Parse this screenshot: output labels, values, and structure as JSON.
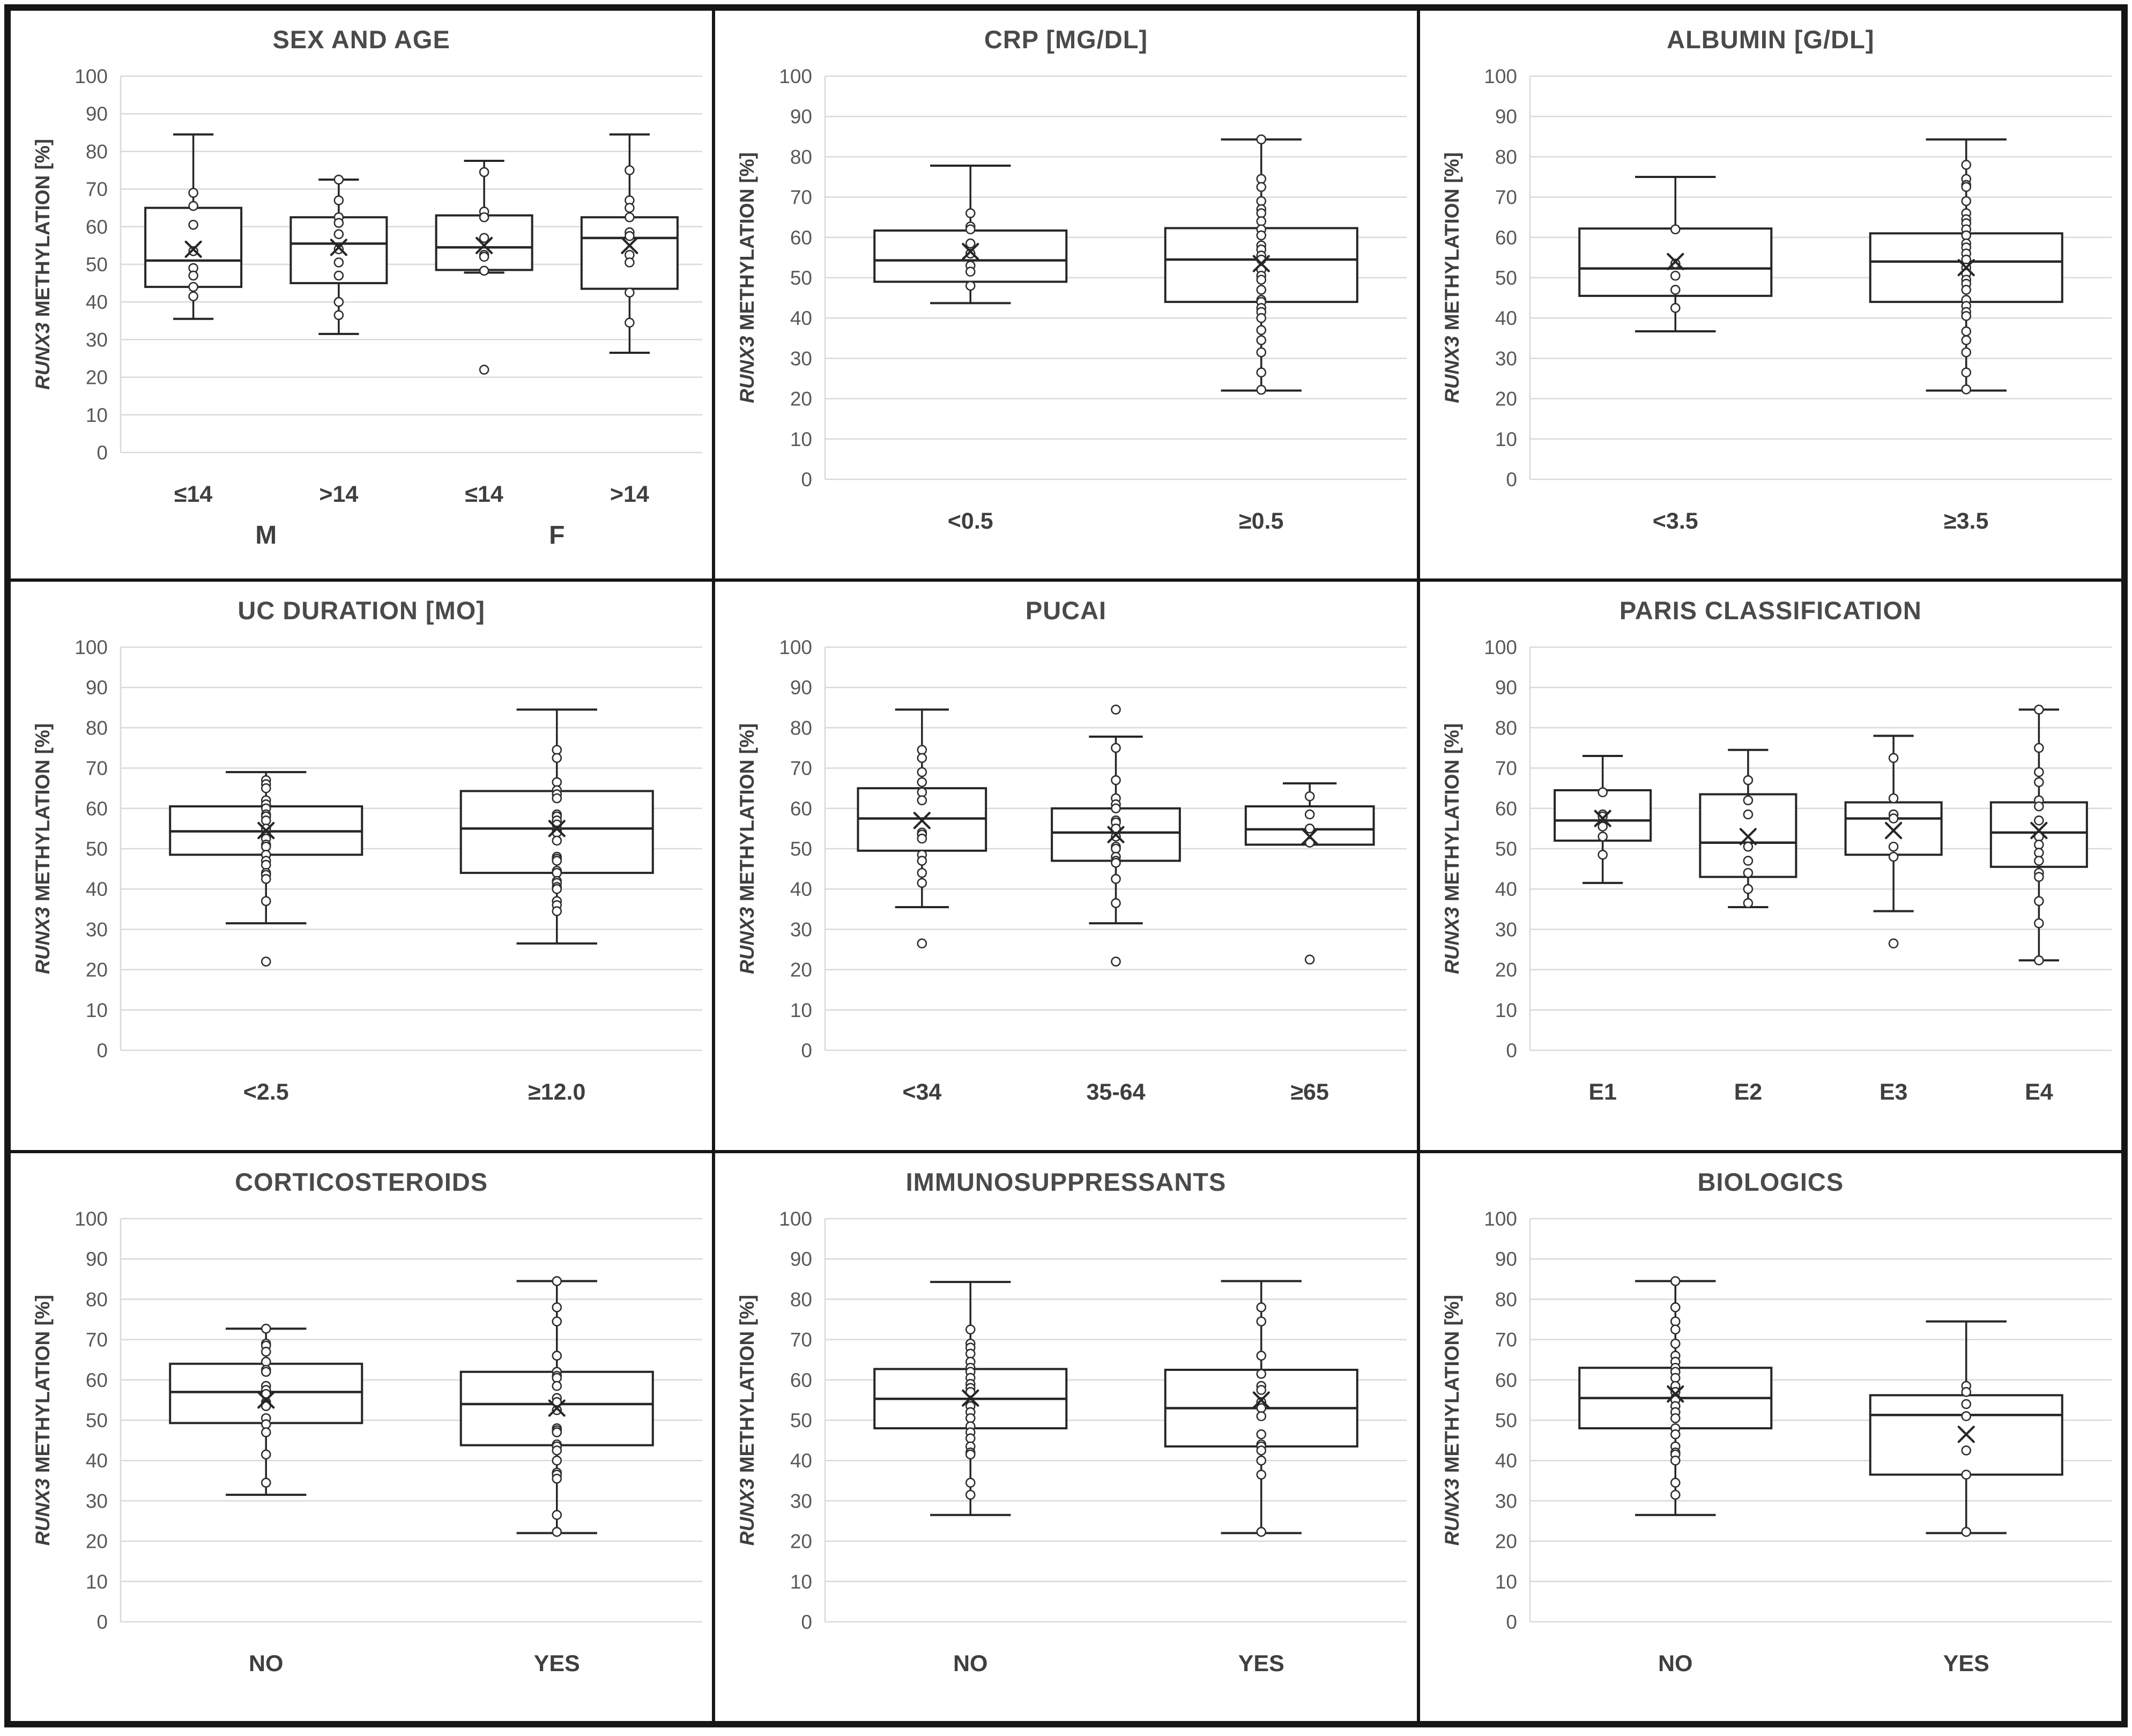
{
  "figure_title": "",
  "axis": {
    "ylabel_gene": "RUNX3",
    "ylabel_rest": "METHYLATION [%]",
    "ylim": [
      0,
      100
    ],
    "yticks": [
      0,
      10,
      20,
      30,
      40,
      50,
      60,
      70,
      80,
      90,
      100
    ],
    "grid": "horizontal",
    "colors": {
      "grid": "#d9d9d9",
      "tick_text": "#595959",
      "title_text": "#4a4a4a",
      "category_text": "#3f3f3f",
      "box_stroke": "#262626"
    }
  },
  "chart_data": [
    {
      "type": "box",
      "title": "SEX AND AGE",
      "categories": [
        "≤14",
        ">14",
        "≤14",
        ">14"
      ],
      "group_labels": [
        {
          "label": "M",
          "start": 0,
          "end": 1
        },
        {
          "label": "F",
          "start": 2,
          "end": 3
        }
      ],
      "series": [
        {
          "category": "≤14",
          "low": 35.5,
          "q1": 44.0,
          "median": 51.0,
          "q3": 65.0,
          "high": 84.5,
          "mean": 54.0,
          "points": [
            69.0,
            65.5,
            60.5,
            53.5,
            49.0,
            47.0,
            44.0,
            41.5
          ],
          "outliers": []
        },
        {
          "category": ">14",
          "low": 31.5,
          "q1": 45.0,
          "median": 55.5,
          "q3": 62.5,
          "high": 72.5,
          "mean": 54.5,
          "points": [
            72.5,
            67.0,
            62.5,
            61.0,
            58.0,
            54.0,
            50.5,
            47.0,
            40.0,
            36.5
          ],
          "outliers": []
        },
        {
          "category": "≤14",
          "low": 47.8,
          "q1": 48.5,
          "median": 54.5,
          "q3": 63.0,
          "high": 77.5,
          "mean": 55.0,
          "points": [
            74.5,
            64.0,
            62.5,
            57.0,
            52.5,
            52.0,
            48.3
          ],
          "outliers": [
            22.0
          ]
        },
        {
          "category": ">14",
          "low": 26.5,
          "q1": 43.5,
          "median": 57.0,
          "q3": 62.5,
          "high": 84.5,
          "mean": 55.0,
          "points": [
            75.0,
            67.0,
            65.0,
            62.5,
            58.5,
            57.5,
            52.5,
            50.5,
            42.5,
            34.5
          ],
          "outliers": []
        }
      ]
    },
    {
      "type": "box",
      "title": "CRP [MG/DL]",
      "categories": [
        "<0.5",
        "≥0.5"
      ],
      "group_labels": [],
      "series": [
        {
          "category": "<0.5",
          "low": 43.7,
          "q1": 49.0,
          "median": 54.3,
          "q3": 61.7,
          "high": 77.8,
          "mean": 56.5,
          "points": [
            66.0,
            62.7,
            62.0,
            58.5,
            56.0,
            53.0,
            51.5,
            48.0
          ],
          "outliers": []
        },
        {
          "category": "≥0.5",
          "low": 22.0,
          "q1": 44.0,
          "median": 54.5,
          "q3": 62.3,
          "high": 84.3,
          "mean": 53.5,
          "points": [
            84.3,
            74.5,
            72.5,
            69.0,
            67.0,
            66.0,
            64.0,
            62.0,
            60.5,
            58.0,
            57.0,
            55.5,
            54.5,
            52.0,
            50.5,
            49.5,
            47.0,
            44.5,
            44.0,
            42.5,
            41.5,
            40.0,
            37.0,
            34.5,
            31.5,
            26.5,
            22.2
          ],
          "outliers": []
        }
      ]
    },
    {
      "type": "box",
      "title": "ALBUMIN [G/DL]",
      "categories": [
        "<3.5",
        "≥3.5"
      ],
      "group_labels": [],
      "series": [
        {
          "category": "<3.5",
          "low": 36.7,
          "q1": 45.5,
          "median": 52.3,
          "q3": 62.2,
          "high": 75.0,
          "mean": 54.0,
          "points": [
            62.0,
            53.5,
            50.5,
            47.0,
            42.5
          ],
          "outliers": []
        },
        {
          "category": "≥3.5",
          "low": 22.0,
          "q1": 44.0,
          "median": 54.0,
          "q3": 61.0,
          "high": 84.3,
          "mean": 52.5,
          "points": [
            78.0,
            74.5,
            73.0,
            72.5,
            69.0,
            66.0,
            64.5,
            63.5,
            62.0,
            60.5,
            58.5,
            57.5,
            56.0,
            54.5,
            52.5,
            51.0,
            49.5,
            48.5,
            47.0,
            44.5,
            43.0,
            41.5,
            40.5,
            36.7,
            34.5,
            31.5,
            26.5,
            22.3
          ],
          "outliers": []
        }
      ]
    },
    {
      "type": "box",
      "title": "UC DURATION [MO]",
      "categories": [
        "<2.5",
        "≥12.0"
      ],
      "group_labels": [],
      "series": [
        {
          "category": "<2.5",
          "low": 31.5,
          "q1": 48.5,
          "median": 54.3,
          "q3": 60.5,
          "high": 69.0,
          "mean": 54.5,
          "points": [
            67.0,
            66.0,
            65.0,
            62.0,
            61.0,
            60.0,
            58.5,
            58.0,
            57.0,
            55.0,
            53.5,
            53.0,
            52.5,
            51.0,
            50.5,
            48.5,
            47.0,
            46.0,
            44.0,
            43.5,
            42.5,
            37.0
          ],
          "outliers": [
            22.0
          ]
        },
        {
          "category": "≥12.0",
          "low": 26.5,
          "q1": 44.0,
          "median": 55.0,
          "q3": 64.3,
          "high": 84.5,
          "mean": 55.0,
          "points": [
            74.5,
            72.5,
            66.5,
            64.5,
            63.5,
            62.5,
            58.5,
            58.0,
            57.0,
            56.0,
            54.5,
            54.0,
            52.0,
            48.0,
            47.5,
            47.0,
            44.5,
            44.0,
            42.0,
            41.5,
            40.5,
            40.0,
            37.0,
            36.0,
            34.5
          ],
          "outliers": []
        }
      ]
    },
    {
      "type": "box",
      "title": "PUCAI",
      "categories": [
        "<34",
        "35-64",
        "≥65"
      ],
      "group_labels": [],
      "series": [
        {
          "category": "<34",
          "low": 35.5,
          "q1": 49.5,
          "median": 57.5,
          "q3": 65.0,
          "high": 84.5,
          "mean": 57.0,
          "points": [
            74.5,
            72.5,
            69.0,
            66.5,
            64.0,
            62.0,
            54.0,
            53.5,
            52.5,
            48.5,
            47.0,
            44.0,
            41.5
          ],
          "outliers": [
            26.5
          ]
        },
        {
          "category": "35-64",
          "low": 31.5,
          "q1": 47.0,
          "median": 54.0,
          "q3": 60.0,
          "high": 77.8,
          "mean": 53.5,
          "points": [
            75.0,
            67.0,
            62.5,
            61.0,
            60.0,
            57.0,
            56.5,
            55.0,
            53.0,
            50.5,
            50.0,
            48.0,
            47.0,
            46.5,
            42.5,
            36.5
          ],
          "outliers": [
            84.5,
            22.0
          ]
        },
        {
          "category": "≥65",
          "low": 51.0,
          "q1": 51.0,
          "median": 54.8,
          "q3": 60.5,
          "high": 66.2,
          "mean": 53.0,
          "points": [
            63.0,
            58.5,
            55.0,
            51.5
          ],
          "outliers": [
            22.5
          ]
        }
      ]
    },
    {
      "type": "box",
      "title": "PARIS CLASSIFICATION",
      "categories": [
        "E1",
        "E2",
        "E3",
        "E4"
      ],
      "group_labels": [],
      "series": [
        {
          "category": "E1",
          "low": 41.5,
          "q1": 52.0,
          "median": 57.0,
          "q3": 64.5,
          "high": 73.0,
          "mean": 57.5,
          "points": [
            64.0,
            58.5,
            58.0,
            55.5,
            53.0,
            48.5
          ],
          "outliers": []
        },
        {
          "category": "E2",
          "low": 35.5,
          "q1": 43.0,
          "median": 51.5,
          "q3": 63.5,
          "high": 74.5,
          "mean": 53.0,
          "points": [
            67.0,
            62.0,
            58.5,
            50.5,
            47.0,
            44.0,
            40.0,
            36.5
          ],
          "outliers": []
        },
        {
          "category": "E3",
          "low": 34.5,
          "q1": 48.5,
          "median": 57.5,
          "q3": 61.5,
          "high": 78.0,
          "mean": 54.5,
          "points": [
            72.5,
            62.5,
            58.5,
            57.5,
            50.5,
            48.0
          ],
          "outliers": [
            26.5
          ]
        },
        {
          "category": "E4",
          "low": 22.3,
          "q1": 45.5,
          "median": 54.0,
          "q3": 61.5,
          "high": 84.5,
          "mean": 54.5,
          "points": [
            84.5,
            75.0,
            69.0,
            66.5,
            62.0,
            60.5,
            57.0,
            53.0,
            51.0,
            49.0,
            47.0,
            44.0,
            43.0,
            37.0,
            31.5,
            22.3
          ],
          "outliers": []
        }
      ]
    },
    {
      "type": "box",
      "title": "CORTICOSTEROIDS",
      "categories": [
        "NO",
        "YES"
      ],
      "group_labels": [],
      "series": [
        {
          "category": "NO",
          "low": 31.5,
          "q1": 49.3,
          "median": 57.0,
          "q3": 64.0,
          "high": 72.7,
          "mean": 55.0,
          "points": [
            72.7,
            69.0,
            68.5,
            67.0,
            64.5,
            62.5,
            62.0,
            58.5,
            57.5,
            56.5,
            54.5,
            54.0,
            53.5,
            50.5,
            49.0,
            47.0,
            41.5,
            34.5
          ],
          "outliers": []
        },
        {
          "category": "YES",
          "low": 22.0,
          "q1": 43.8,
          "median": 54.0,
          "q3": 62.0,
          "high": 84.5,
          "mean": 53.0,
          "points": [
            84.5,
            78.0,
            74.5,
            66.0,
            62.0,
            61.0,
            60.5,
            58.5,
            55.5,
            54.5,
            52.5,
            48.0,
            47.5,
            47.0,
            44.0,
            43.5,
            42.5,
            40.0,
            37.0,
            36.5,
            35.5,
            26.5,
            22.3
          ],
          "outliers": []
        }
      ]
    },
    {
      "type": "box",
      "title": "IMMUNOSUPPRESSANTS",
      "categories": [
        "NO",
        "YES"
      ],
      "group_labels": [],
      "series": [
        {
          "category": "NO",
          "low": 26.5,
          "q1": 48.0,
          "median": 55.3,
          "q3": 62.7,
          "high": 84.3,
          "mean": 55.5,
          "points": [
            72.5,
            69.0,
            68.0,
            66.5,
            64.5,
            63.0,
            62.0,
            60.5,
            59.0,
            58.0,
            57.0,
            54.0,
            53.5,
            52.0,
            50.5,
            48.5,
            47.0,
            45.5,
            43.5,
            42.0,
            41.5,
            34.5,
            31.5
          ],
          "outliers": []
        },
        {
          "category": "YES",
          "low": 22.0,
          "q1": 43.5,
          "median": 53.0,
          "q3": 62.5,
          "high": 84.5,
          "mean": 55.0,
          "points": [
            78.0,
            74.5,
            66.0,
            61.5,
            58.5,
            57.5,
            54.5,
            53.0,
            51.0,
            46.5,
            44.0,
            43.5,
            42.5,
            40.0,
            36.5,
            22.3
          ],
          "outliers": []
        }
      ]
    },
    {
      "type": "box",
      "title": "BIOLOGICS",
      "categories": [
        "NO",
        "YES"
      ],
      "group_labels": [],
      "series": [
        {
          "category": "NO",
          "low": 26.5,
          "q1": 48.0,
          "median": 55.5,
          "q3": 63.0,
          "high": 84.5,
          "mean": 56.5,
          "points": [
            84.5,
            78.0,
            74.5,
            72.5,
            69.0,
            66.0,
            64.5,
            63.0,
            62.0,
            60.5,
            58.5,
            57.0,
            55.5,
            55.0,
            53.5,
            52.0,
            50.5,
            48.0,
            46.5,
            43.5,
            42.0,
            41.5,
            40.0,
            34.5,
            31.5
          ],
          "outliers": []
        },
        {
          "category": "YES",
          "low": 22.0,
          "q1": 36.5,
          "median": 51.3,
          "q3": 56.2,
          "high": 74.5,
          "mean": 46.5,
          "points": [
            58.5,
            57.0,
            54.0,
            51.0,
            42.5,
            36.5,
            22.3
          ],
          "outliers": []
        }
      ]
    }
  ]
}
